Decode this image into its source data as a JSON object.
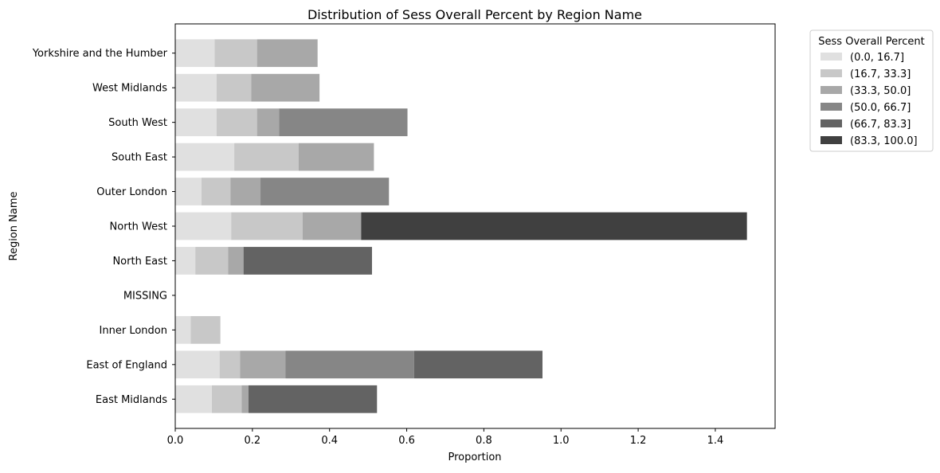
{
  "chart_data": {
    "type": "bar",
    "orientation": "horizontal",
    "stacked": true,
    "title": "Distribution of Sess Overall Percent by Region Name",
    "xlabel": "Proportion",
    "ylabel": "Region Name",
    "xlim": [
      0,
      1.555
    ],
    "x_ticks": [
      "0.0",
      "0.2",
      "0.4",
      "0.6",
      "0.8",
      "1.0",
      "1.2",
      "1.4"
    ],
    "grid": false,
    "legend": {
      "title": "Sess Overall Percent",
      "placement": "outside-top-right"
    },
    "categories": [
      "East Midlands",
      "East of England",
      "Inner London",
      "MISSING",
      "North East",
      "North West",
      "Outer London",
      "South East",
      "South West",
      "West Midlands",
      "Yorkshire and the Humber"
    ],
    "series": [
      {
        "name": "(0.0, 16.7]",
        "color": "#e0e0e0",
        "values": [
          0.095,
          0.115,
          0.04,
          0,
          0.052,
          0.145,
          0.068,
          0.153,
          0.107,
          0.107,
          0.102
        ]
      },
      {
        "name": "(16.7, 33.3]",
        "color": "#c8c8c8",
        "values": [
          0.077,
          0.053,
          0.077,
          0,
          0.085,
          0.185,
          0.075,
          0.167,
          0.105,
          0.09,
          0.11
        ]
      },
      {
        "name": "(33.3, 50.0]",
        "color": "#a8a8a8",
        "values": [
          0.018,
          0.118,
          0,
          0,
          0.04,
          0.152,
          0.078,
          0.195,
          0.057,
          0.177,
          0.157
        ]
      },
      {
        "name": "(50.0, 66.7]",
        "color": "#868686",
        "values": [
          0,
          0.333,
          0,
          0,
          0,
          0,
          0.333,
          0,
          0.333,
          0,
          0
        ]
      },
      {
        "name": "(66.7, 83.3]",
        "color": "#636363",
        "values": [
          0.333,
          0.333,
          0,
          0,
          0.333,
          0,
          0,
          0,
          0,
          0,
          0
        ]
      },
      {
        "name": "(83.3, 100.0]",
        "color": "#404040",
        "values": [
          0,
          0,
          0,
          0,
          0,
          1.0,
          0,
          0,
          0,
          0,
          0
        ]
      }
    ]
  }
}
